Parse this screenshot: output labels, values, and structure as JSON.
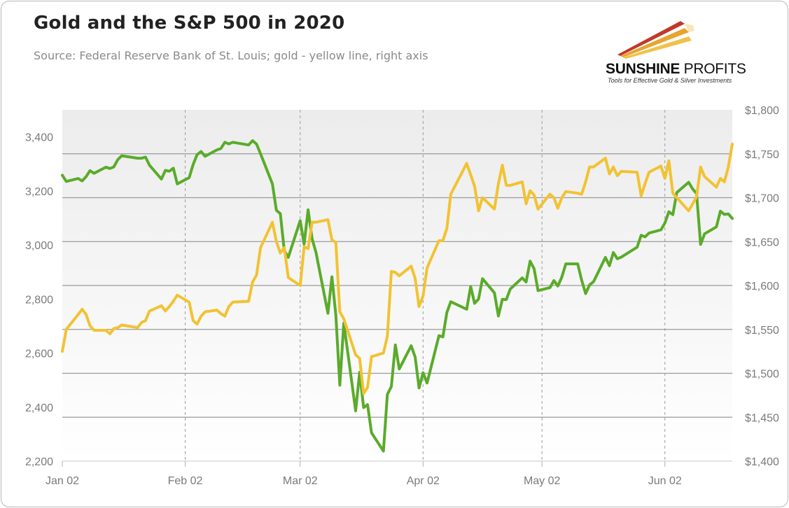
{
  "header": {
    "title": "Gold and the S&P 500 in 2020",
    "subtitle": "Source: Federal Reserve Bank of St. Louis; gold - yellow line, right axis"
  },
  "logo": {
    "name_bold": "SUNSHINE",
    "name_light": " PROFITS",
    "tagline": "Tools for Effective Gold & Silver Investments",
    "colors": [
      "#c0392b",
      "#e6a531",
      "#f0c24b"
    ]
  },
  "chart_data": {
    "type": "line",
    "title": "Gold and the S&P 500 in 2020",
    "x_tick_labels": [
      "Jan 02",
      "Feb 02",
      "Mar 02",
      "Apr 02",
      "May 02",
      "Jun 02"
    ],
    "y_left_tick_labels": [
      "2,200",
      "2,400",
      "2,600",
      "2,800",
      "3,000",
      "3,200",
      "3,400"
    ],
    "y_right_tick_labels": [
      "$1,400",
      "$1,450",
      "$1,500",
      "$1,550",
      "$1,600",
      "$1,650",
      "$1,700",
      "$1,750",
      "$1,800"
    ],
    "x_range": [
      "2020-01-02",
      "2020-06-19"
    ],
    "y_left_range": [
      2200,
      3500
    ],
    "y_right_range": [
      1400,
      1800
    ],
    "grid": "horizontal lines at right-axis ticks, dashed vertical lines at month ticks",
    "series": [
      {
        "axis": "left",
        "color": "#5aab2a",
        "points": [
          [
            "2020-01-02",
            3258
          ],
          [
            "2020-01-03",
            3235
          ],
          [
            "2020-01-06",
            3246
          ],
          [
            "2020-01-07",
            3237
          ],
          [
            "2020-01-08",
            3253
          ],
          [
            "2020-01-09",
            3275
          ],
          [
            "2020-01-10",
            3265
          ],
          [
            "2020-01-13",
            3288
          ],
          [
            "2020-01-14",
            3283
          ],
          [
            "2020-01-15",
            3289
          ],
          [
            "2020-01-16",
            3316
          ],
          [
            "2020-01-17",
            3330
          ],
          [
            "2020-01-21",
            3321
          ],
          [
            "2020-01-22",
            3321
          ],
          [
            "2020-01-23",
            3325
          ],
          [
            "2020-01-24",
            3295
          ],
          [
            "2020-01-27",
            3244
          ],
          [
            "2020-01-28",
            3276
          ],
          [
            "2020-01-29",
            3273
          ],
          [
            "2020-01-30",
            3284
          ],
          [
            "2020-01-31",
            3226
          ],
          [
            "2020-02-03",
            3249
          ],
          [
            "2020-02-04",
            3298
          ],
          [
            "2020-02-05",
            3334
          ],
          [
            "2020-02-06",
            3346
          ],
          [
            "2020-02-07",
            3328
          ],
          [
            "2020-02-10",
            3352
          ],
          [
            "2020-02-11",
            3357
          ],
          [
            "2020-02-12",
            3380
          ],
          [
            "2020-02-13",
            3374
          ],
          [
            "2020-02-14",
            3380
          ],
          [
            "2020-02-18",
            3370
          ],
          [
            "2020-02-19",
            3386
          ],
          [
            "2020-02-20",
            3373
          ],
          [
            "2020-02-21",
            3338
          ],
          [
            "2020-02-24",
            3226
          ],
          [
            "2020-02-25",
            3128
          ],
          [
            "2020-02-26",
            3116
          ],
          [
            "2020-02-27",
            2979
          ],
          [
            "2020-02-28",
            2954
          ],
          [
            "2020-03-02",
            3090
          ],
          [
            "2020-03-03",
            3003
          ],
          [
            "2020-03-04",
            3130
          ],
          [
            "2020-03-05",
            3023
          ],
          [
            "2020-03-06",
            2972
          ],
          [
            "2020-03-09",
            2747
          ],
          [
            "2020-03-10",
            2882
          ],
          [
            "2020-03-11",
            2741
          ],
          [
            "2020-03-12",
            2481
          ],
          [
            "2020-03-13",
            2711
          ],
          [
            "2020-03-16",
            2386
          ],
          [
            "2020-03-17",
            2529
          ],
          [
            "2020-03-18",
            2398
          ],
          [
            "2020-03-19",
            2409
          ],
          [
            "2020-03-20",
            2305
          ],
          [
            "2020-03-23",
            2237
          ],
          [
            "2020-03-24",
            2447
          ],
          [
            "2020-03-25",
            2476
          ],
          [
            "2020-03-26",
            2630
          ],
          [
            "2020-03-27",
            2541
          ],
          [
            "2020-03-30",
            2627
          ],
          [
            "2020-03-31",
            2585
          ],
          [
            "2020-04-01",
            2471
          ],
          [
            "2020-04-02",
            2527
          ],
          [
            "2020-04-03",
            2489
          ],
          [
            "2020-04-06",
            2664
          ],
          [
            "2020-04-07",
            2660
          ],
          [
            "2020-04-08",
            2750
          ],
          [
            "2020-04-09",
            2790
          ],
          [
            "2020-04-13",
            2762
          ],
          [
            "2020-04-14",
            2846
          ],
          [
            "2020-04-15",
            2784
          ],
          [
            "2020-04-16",
            2800
          ],
          [
            "2020-04-17",
            2875
          ],
          [
            "2020-04-20",
            2823
          ],
          [
            "2020-04-21",
            2737
          ],
          [
            "2020-04-22",
            2799
          ],
          [
            "2020-04-23",
            2798
          ],
          [
            "2020-04-24",
            2837
          ],
          [
            "2020-04-27",
            2878
          ],
          [
            "2020-04-28",
            2863
          ],
          [
            "2020-04-29",
            2940
          ],
          [
            "2020-04-30",
            2912
          ],
          [
            "2020-05-01",
            2831
          ],
          [
            "2020-05-04",
            2842
          ],
          [
            "2020-05-05",
            2868
          ],
          [
            "2020-05-06",
            2848
          ],
          [
            "2020-05-07",
            2881
          ],
          [
            "2020-05-08",
            2930
          ],
          [
            "2020-05-11",
            2930
          ],
          [
            "2020-05-12",
            2870
          ],
          [
            "2020-05-13",
            2820
          ],
          [
            "2020-05-14",
            2852
          ],
          [
            "2020-05-15",
            2864
          ],
          [
            "2020-05-18",
            2954
          ],
          [
            "2020-05-19",
            2923
          ],
          [
            "2020-05-20",
            2972
          ],
          [
            "2020-05-21",
            2949
          ],
          [
            "2020-05-22",
            2955
          ],
          [
            "2020-05-26",
            2992
          ],
          [
            "2020-05-27",
            3036
          ],
          [
            "2020-05-28",
            3030
          ],
          [
            "2020-05-29",
            3044
          ],
          [
            "2020-06-01",
            3056
          ],
          [
            "2020-06-02",
            3081
          ],
          [
            "2020-06-03",
            3123
          ],
          [
            "2020-06-04",
            3112
          ],
          [
            "2020-06-05",
            3194
          ],
          [
            "2020-06-08",
            3232
          ],
          [
            "2020-06-09",
            3207
          ],
          [
            "2020-06-10",
            3190
          ],
          [
            "2020-06-11",
            3002
          ],
          [
            "2020-06-12",
            3041
          ],
          [
            "2020-06-15",
            3067
          ],
          [
            "2020-06-16",
            3125
          ],
          [
            "2020-06-17",
            3113
          ],
          [
            "2020-06-18",
            3115
          ],
          [
            "2020-06-19",
            3098
          ]
        ]
      },
      {
        "axis": "right",
        "color": "#f2c232",
        "points": [
          [
            "2020-01-02",
            1525
          ],
          [
            "2020-01-03",
            1550
          ],
          [
            "2020-01-06",
            1567
          ],
          [
            "2020-01-07",
            1573
          ],
          [
            "2020-01-08",
            1567
          ],
          [
            "2020-01-09",
            1554
          ],
          [
            "2020-01-10",
            1549
          ],
          [
            "2020-01-13",
            1549
          ],
          [
            "2020-01-14",
            1545
          ],
          [
            "2020-01-15",
            1551
          ],
          [
            "2020-01-16",
            1552
          ],
          [
            "2020-01-17",
            1555
          ],
          [
            "2020-01-21",
            1552
          ],
          [
            "2020-01-22",
            1558
          ],
          [
            "2020-01-23",
            1560
          ],
          [
            "2020-01-24",
            1571
          ],
          [
            "2020-01-27",
            1577
          ],
          [
            "2020-01-28",
            1571
          ],
          [
            "2020-01-29",
            1576
          ],
          [
            "2020-01-30",
            1582
          ],
          [
            "2020-01-31",
            1589
          ],
          [
            "2020-02-03",
            1581
          ],
          [
            "2020-02-04",
            1560
          ],
          [
            "2020-02-05",
            1556
          ],
          [
            "2020-02-06",
            1565
          ],
          [
            "2020-02-07",
            1570
          ],
          [
            "2020-02-10",
            1572
          ],
          [
            "2020-02-11",
            1568
          ],
          [
            "2020-02-12",
            1565
          ],
          [
            "2020-02-13",
            1576
          ],
          [
            "2020-02-14",
            1581
          ],
          [
            "2020-02-18",
            1582
          ],
          [
            "2020-02-19",
            1604
          ],
          [
            "2020-02-20",
            1612
          ],
          [
            "2020-02-21",
            1643
          ],
          [
            "2020-02-24",
            1672
          ],
          [
            "2020-02-25",
            1650
          ],
          [
            "2020-02-26",
            1637
          ],
          [
            "2020-02-27",
            1643
          ],
          [
            "2020-02-28",
            1609
          ],
          [
            "2020-03-02",
            1600
          ],
          [
            "2020-03-03",
            1644
          ],
          [
            "2020-03-04",
            1642
          ],
          [
            "2020-03-05",
            1672
          ],
          [
            "2020-03-06",
            1672
          ],
          [
            "2020-03-09",
            1675
          ],
          [
            "2020-03-10",
            1652
          ],
          [
            "2020-03-11",
            1649
          ],
          [
            "2020-03-12",
            1570
          ],
          [
            "2020-03-13",
            1562
          ],
          [
            "2020-03-16",
            1521
          ],
          [
            "2020-03-17",
            1517
          ],
          [
            "2020-03-18",
            1477
          ],
          [
            "2020-03-19",
            1484
          ],
          [
            "2020-03-20",
            1519
          ],
          [
            "2020-03-23",
            1523
          ],
          [
            "2020-03-24",
            1542
          ],
          [
            "2020-03-25",
            1616
          ],
          [
            "2020-03-26",
            1615
          ],
          [
            "2020-03-27",
            1611
          ],
          [
            "2020-03-30",
            1622
          ],
          [
            "2020-03-31",
            1608
          ],
          [
            "2020-04-01",
            1576
          ],
          [
            "2020-04-02",
            1588
          ],
          [
            "2020-04-03",
            1620
          ],
          [
            "2020-04-06",
            1651
          ],
          [
            "2020-04-07",
            1651
          ],
          [
            "2020-04-08",
            1665
          ],
          [
            "2020-04-09",
            1704
          ],
          [
            "2020-04-13",
            1739
          ],
          [
            "2020-04-14",
            1726
          ],
          [
            "2020-04-15",
            1713
          ],
          [
            "2020-04-16",
            1685
          ],
          [
            "2020-04-17",
            1700
          ],
          [
            "2020-04-20",
            1687
          ],
          [
            "2020-04-21",
            1716
          ],
          [
            "2020-04-22",
            1737
          ],
          [
            "2020-04-23",
            1714
          ],
          [
            "2020-04-24",
            1714
          ],
          [
            "2020-04-27",
            1718
          ],
          [
            "2020-04-28",
            1693
          ],
          [
            "2020-04-29",
            1708
          ],
          [
            "2020-04-30",
            1703
          ],
          [
            "2020-05-01",
            1687
          ],
          [
            "2020-05-04",
            1704
          ],
          [
            "2020-05-05",
            1700
          ],
          [
            "2020-05-06",
            1688
          ],
          [
            "2020-05-07",
            1700
          ],
          [
            "2020-05-08",
            1707
          ],
          [
            "2020-05-11",
            1705
          ],
          [
            "2020-05-12",
            1704
          ],
          [
            "2020-05-13",
            1718
          ],
          [
            "2020-05-14",
            1735
          ],
          [
            "2020-05-15",
            1735
          ],
          [
            "2020-05-18",
            1745
          ],
          [
            "2020-05-19",
            1727
          ],
          [
            "2020-05-20",
            1735
          ],
          [
            "2020-05-21",
            1725
          ],
          [
            "2020-05-22",
            1730
          ],
          [
            "2020-05-26",
            1729
          ],
          [
            "2020-05-27",
            1702
          ],
          [
            "2020-05-28",
            1716
          ],
          [
            "2020-05-29",
            1729
          ],
          [
            "2020-06-01",
            1736
          ],
          [
            "2020-06-02",
            1722
          ],
          [
            "2020-06-03",
            1742
          ],
          [
            "2020-06-04",
            1705
          ],
          [
            "2020-06-05",
            1700
          ],
          [
            "2020-06-08",
            1685
          ],
          [
            "2020-06-09",
            1693
          ],
          [
            "2020-06-10",
            1701
          ],
          [
            "2020-06-11",
            1735
          ],
          [
            "2020-06-12",
            1724
          ],
          [
            "2020-06-15",
            1712
          ],
          [
            "2020-06-16",
            1722
          ],
          [
            "2020-06-17",
            1718
          ],
          [
            "2020-06-18",
            1735
          ],
          [
            "2020-06-19",
            1761
          ]
        ]
      }
    ]
  }
}
